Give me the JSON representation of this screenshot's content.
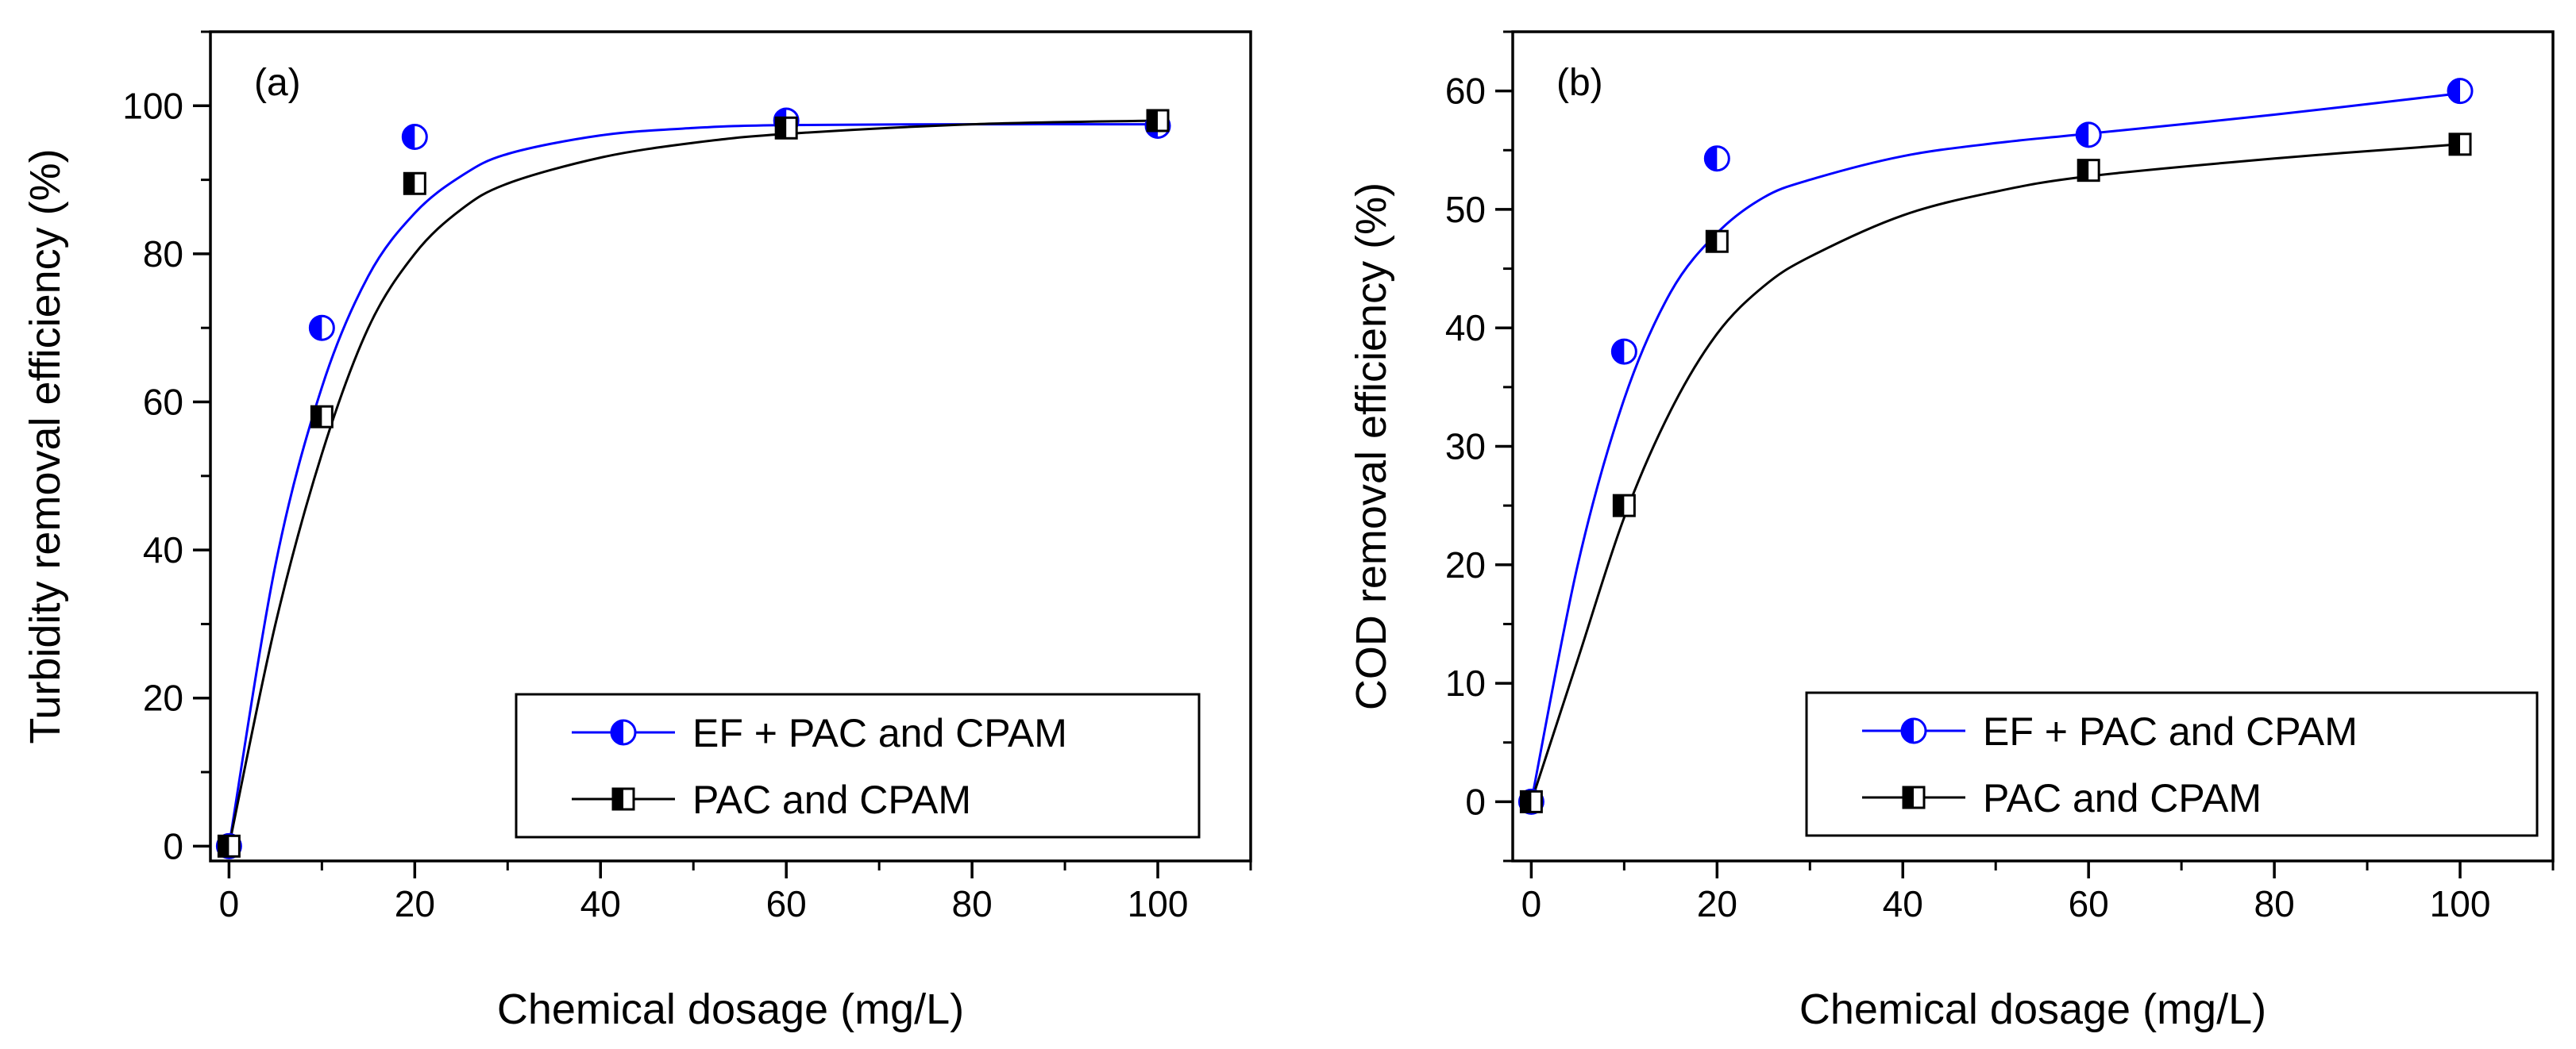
{
  "chart_data": [
    {
      "type": "scatter",
      "panel_label": "(a)",
      "xlabel": "Chemical dosage (mg/L)",
      "ylabel": "Turbidity removal efficiency (%)",
      "xlim": [
        -2,
        110
      ],
      "ylim": [
        -2,
        110
      ],
      "xticks": [
        0,
        20,
        40,
        60,
        80,
        100
      ],
      "yticks": [
        0,
        20,
        40,
        60,
        80,
        100
      ],
      "xtick_labels": [
        "0",
        "20",
        "40",
        "60",
        "80",
        "100"
      ],
      "ytick_labels": [
        "0",
        "20",
        "40",
        "60",
        "80",
        "100"
      ],
      "grid": false,
      "legend_position": "lower-right",
      "series": [
        {
          "name": "EF + PAC and CPAM",
          "marker": "half-filled-circle",
          "color": "#0000ff",
          "x": [
            0,
            10,
            20,
            60,
            100
          ],
          "y": [
            0,
            70,
            95.8,
            98,
            97.3
          ],
          "fit_curve": {
            "x": [
              0,
              5,
              10,
              15,
              20,
              25,
              30,
              40,
              50,
              60,
              80,
              100
            ],
            "y": [
              0,
              38,
              62,
              77,
              85.5,
              90.5,
              93.5,
              96,
              97,
              97.4,
              97.5,
              97.5
            ]
          }
        },
        {
          "name": "PAC and CPAM",
          "marker": "half-filled-square",
          "color": "#000000",
          "x": [
            0,
            10,
            20,
            60,
            100
          ],
          "y": [
            0,
            58,
            89.5,
            97,
            98
          ],
          "fit_curve": {
            "x": [
              0,
              5,
              10,
              15,
              20,
              25,
              30,
              40,
              50,
              60,
              80,
              100
            ],
            "y": [
              0,
              30,
              53,
              70,
              80,
              86,
              89.5,
              93,
              95,
              96.2,
              97.5,
              98
            ]
          }
        }
      ]
    },
    {
      "type": "scatter",
      "panel_label": "(b)",
      "xlabel": "Chemical dosage (mg/L)",
      "ylabel": "COD removal efficiency (%)",
      "xlim": [
        -2,
        110
      ],
      "ylim": [
        -5,
        65
      ],
      "xticks": [
        0,
        20,
        40,
        60,
        80,
        100
      ],
      "yticks": [
        0,
        10,
        20,
        30,
        40,
        50,
        60
      ],
      "xtick_labels": [
        "0",
        "20",
        "40",
        "60",
        "80",
        "100"
      ],
      "ytick_labels": [
        "0",
        "10",
        "20",
        "30",
        "40",
        "50",
        "60"
      ],
      "grid": false,
      "legend_position": "lower-right",
      "series": [
        {
          "name": "EF + PAC and CPAM",
          "marker": "half-filled-circle",
          "color": "#0000ff",
          "x": [
            0,
            10,
            20,
            60,
            100
          ],
          "y": [
            0,
            38,
            54.3,
            56.3,
            60
          ],
          "fit_curve": {
            "x": [
              0,
              5,
              10,
              15,
              20,
              25,
              30,
              40,
              50,
              60,
              80,
              100
            ],
            "y": [
              0,
              20,
              34,
              43,
              48,
              51,
              52.5,
              54.5,
              55.6,
              56.4,
              58,
              59.8
            ]
          }
        },
        {
          "name": "PAC and CPAM",
          "marker": "half-filled-square",
          "color": "#000000",
          "x": [
            0,
            10,
            20,
            60,
            100
          ],
          "y": [
            0,
            25,
            47.3,
            53.3,
            55.5
          ],
          "fit_curve": {
            "x": [
              0,
              5,
              10,
              15,
              20,
              25,
              30,
              40,
              50,
              60,
              80,
              100
            ],
            "y": [
              0,
              12,
              24,
              33,
              39.5,
              43.5,
              46,
              49.5,
              51.5,
              52.8,
              54.3,
              55.5
            ]
          }
        }
      ]
    }
  ]
}
